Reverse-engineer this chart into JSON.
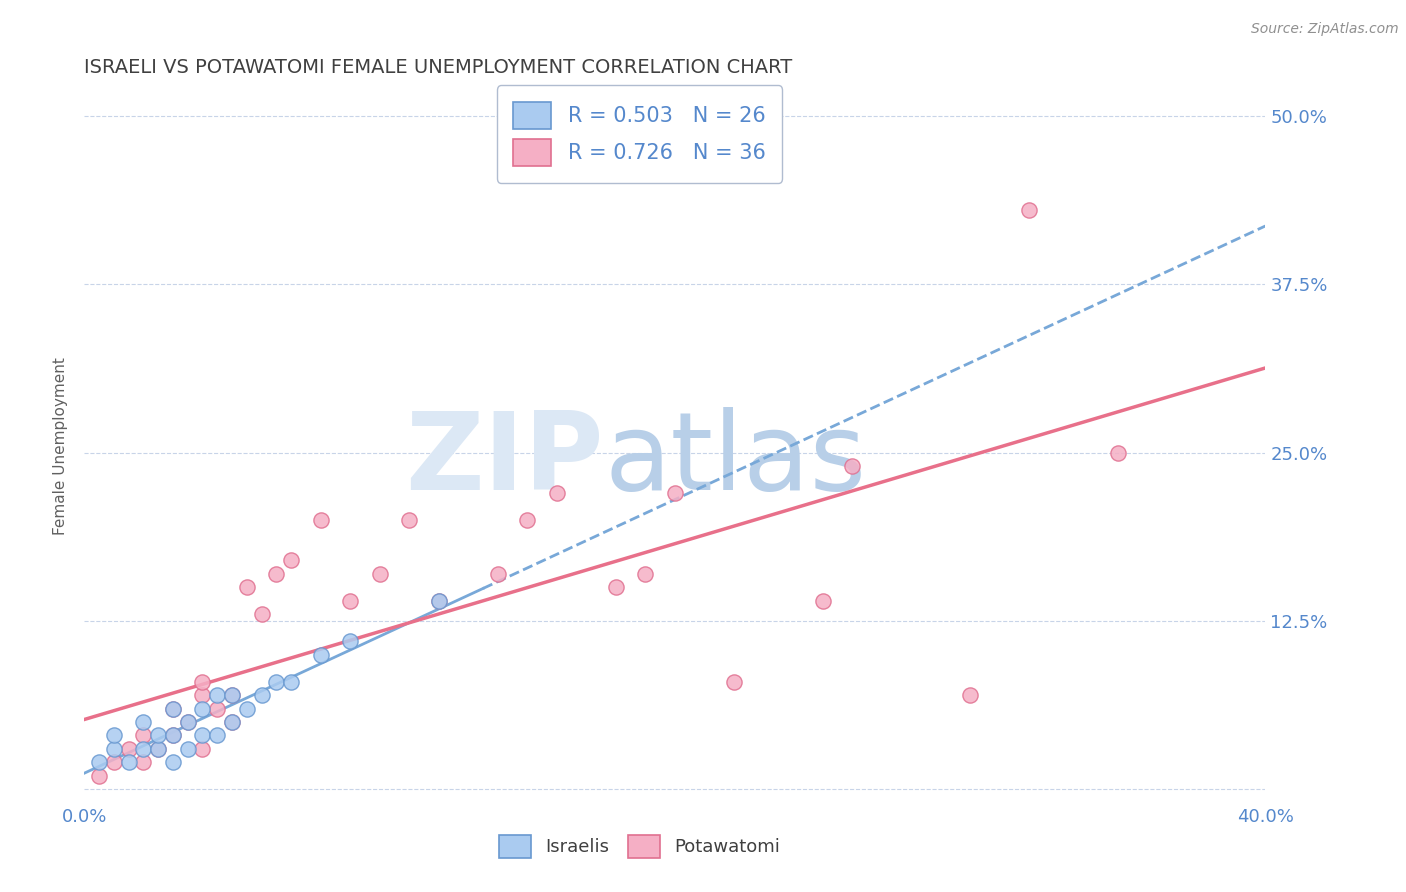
{
  "title": "ISRAELI VS POTAWATOMI FEMALE UNEMPLOYMENT CORRELATION CHART",
  "source": "Source: ZipAtlas.com",
  "ylabel": "Female Unemployment",
  "xlim": [
    0.0,
    0.4
  ],
  "ylim": [
    -0.01,
    0.52
  ],
  "yticks": [
    0.0,
    0.125,
    0.25,
    0.375,
    0.5
  ],
  "ytick_labels_right": [
    "",
    "12.5%",
    "25.0%",
    "37.5%",
    "50.0%"
  ],
  "xticks": [
    0.0,
    0.05,
    0.1,
    0.15,
    0.2,
    0.25,
    0.3,
    0.35,
    0.4
  ],
  "xtick_labels": [
    "0.0%",
    "",
    "",
    "",
    "",
    "",
    "",
    "",
    "40.0%"
  ],
  "legend_r1": "R = 0.503",
  "legend_n1": "N = 26",
  "legend_r2": "R = 0.726",
  "legend_n2": "N = 36",
  "israelis_color": "#aacbf0",
  "potawatomi_color": "#f5afc5",
  "israelis_edge": "#6898d0",
  "potawatomi_edge": "#e07090",
  "regression_blue_color": "#78a8d8",
  "regression_pink_color": "#e8708a",
  "title_color": "#404040",
  "axis_label_color": "#606060",
  "tick_color": "#5588cc",
  "watermark_zip_color": "#dce8f5",
  "watermark_atlas_color": "#b8cfe8",
  "background_color": "#ffffff",
  "grid_color": "#c8d4e8",
  "israelis_x": [
    0.005,
    0.01,
    0.01,
    0.015,
    0.02,
    0.02,
    0.025,
    0.025,
    0.03,
    0.03,
    0.03,
    0.035,
    0.035,
    0.04,
    0.04,
    0.045,
    0.045,
    0.05,
    0.05,
    0.055,
    0.06,
    0.065,
    0.07,
    0.08,
    0.09,
    0.12
  ],
  "israelis_y": [
    0.02,
    0.03,
    0.04,
    0.02,
    0.03,
    0.05,
    0.03,
    0.04,
    0.02,
    0.04,
    0.06,
    0.03,
    0.05,
    0.04,
    0.06,
    0.04,
    0.07,
    0.05,
    0.07,
    0.06,
    0.07,
    0.08,
    0.08,
    0.1,
    0.11,
    0.14
  ],
  "potawatomi_x": [
    0.005,
    0.01,
    0.015,
    0.02,
    0.02,
    0.025,
    0.03,
    0.03,
    0.035,
    0.04,
    0.04,
    0.04,
    0.045,
    0.05,
    0.05,
    0.055,
    0.06,
    0.065,
    0.07,
    0.08,
    0.09,
    0.1,
    0.11,
    0.12,
    0.14,
    0.15,
    0.16,
    0.18,
    0.19,
    0.2,
    0.22,
    0.25,
    0.26,
    0.3,
    0.32,
    0.35
  ],
  "potawatomi_y": [
    0.01,
    0.02,
    0.03,
    0.02,
    0.04,
    0.03,
    0.04,
    0.06,
    0.05,
    0.03,
    0.07,
    0.08,
    0.06,
    0.05,
    0.07,
    0.15,
    0.13,
    0.16,
    0.17,
    0.2,
    0.14,
    0.16,
    0.2,
    0.14,
    0.16,
    0.2,
    0.22,
    0.15,
    0.16,
    0.22,
    0.08,
    0.14,
    0.24,
    0.07,
    0.43,
    0.25
  ],
  "israeli_line_x_end": 0.13,
  "israeli_line_intercept": 0.02,
  "israeli_line_slope": 0.72,
  "potawatomi_line_intercept": 0.005,
  "potawatomi_line_slope": 0.82
}
